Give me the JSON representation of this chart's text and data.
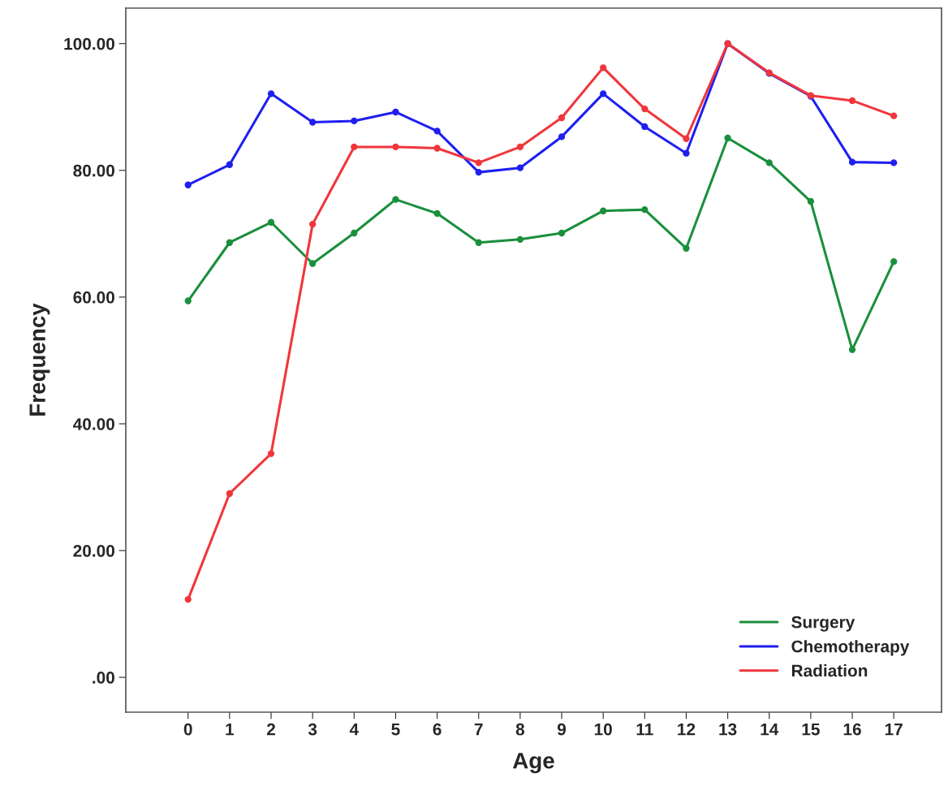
{
  "chart_data": {
    "type": "line",
    "xlabel": "Age",
    "ylabel": "Frequency",
    "x": [
      0,
      1,
      2,
      3,
      4,
      5,
      6,
      7,
      8,
      9,
      10,
      11,
      12,
      13,
      14,
      15,
      16,
      17
    ],
    "xlim": [
      -1.5,
      18.15
    ],
    "xticks": [
      0,
      1,
      2,
      3,
      4,
      5,
      6,
      7,
      8,
      9,
      10,
      11,
      12,
      13,
      14,
      15,
      16,
      17
    ],
    "ylim": [
      -5.5,
      105.6
    ],
    "yticks": [
      {
        "value": 0,
        "label": ".00"
      },
      {
        "value": 20,
        "label": "20.00"
      },
      {
        "value": 40,
        "label": "40.00"
      },
      {
        "value": 60,
        "label": "60.00"
      },
      {
        "value": 80,
        "label": "80.00"
      },
      {
        "value": 100,
        "label": "100.00"
      }
    ],
    "series": [
      {
        "name": "Surgery",
        "color": "#1a8f3c",
        "values": [
          59.4,
          68.6,
          71.8,
          65.3,
          70.1,
          75.4,
          73.2,
          68.6,
          69.1,
          70.1,
          73.6,
          73.8,
          67.7,
          85.1,
          81.2,
          75.1,
          51.7,
          65.6
        ]
      },
      {
        "name": "Chemotherapy",
        "color": "#1f1ff0",
        "values": [
          77.7,
          80.9,
          92.1,
          87.6,
          87.8,
          89.2,
          86.2,
          79.7,
          80.4,
          85.3,
          92.1,
          86.9,
          82.7,
          100,
          95.3,
          91.7,
          81.3,
          81.2
        ]
      },
      {
        "name": "Radiation",
        "color": "#f0363c",
        "values": [
          12.3,
          29.0,
          35.3,
          71.5,
          83.7,
          83.7,
          83.5,
          81.2,
          83.7,
          88.3,
          96.2,
          89.7,
          85.0,
          100,
          95.4,
          91.8,
          91.0,
          88.6
        ]
      }
    ],
    "marker": "circle",
    "line_style": "solid",
    "grid": false,
    "legend": "bottom right"
  }
}
